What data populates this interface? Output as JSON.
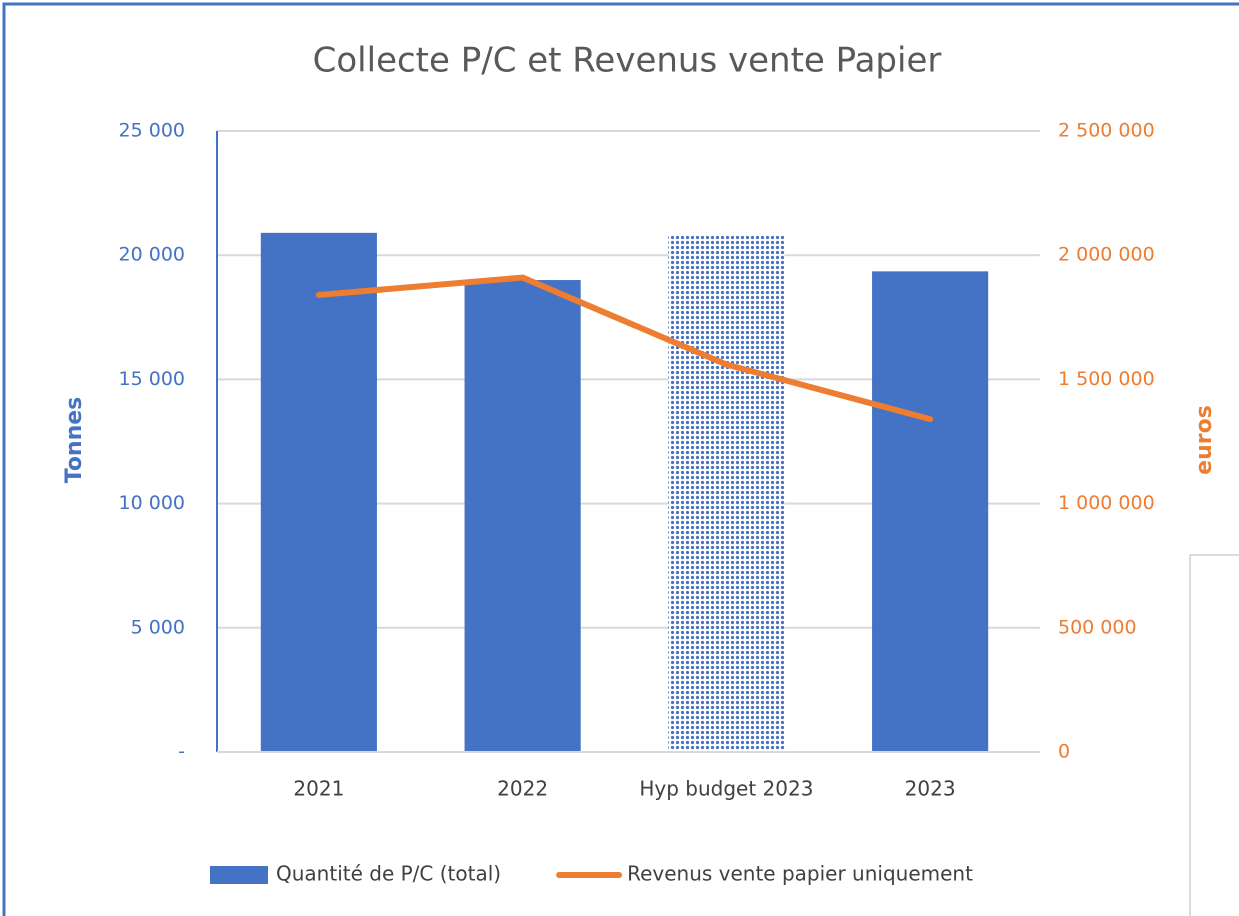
{
  "chart_data": {
    "type": "bar-line",
    "title": "Collecte P/C et Revenus vente Papier",
    "y_label": "Tonnes",
    "y2_label": "euros",
    "categories": [
      "2021",
      "2022",
      "Hyp budget 2023",
      "2023"
    ],
    "series": [
      {
        "name": "Quantité de P/C (total)",
        "type": "bar",
        "color": "#4472c4",
        "values": [
          20900,
          19000,
          20800,
          19350
        ],
        "patterned": [
          false,
          false,
          true,
          false
        ]
      },
      {
        "name": "Revenus vente papier uniquement",
        "type": "line",
        "axis": "y2",
        "color": "#ed7d31",
        "values": [
          1840000,
          1910000,
          1560000,
          1340000
        ]
      }
    ],
    "ylim": [
      0,
      25000
    ],
    "yticks": [
      {
        "value": 0,
        "label": "-"
      },
      {
        "value": 5000,
        "label": "5 000"
      },
      {
        "value": 10000,
        "label": "10 000"
      },
      {
        "value": 15000,
        "label": "15 000"
      },
      {
        "value": 20000,
        "label": "20 000"
      },
      {
        "value": 25000,
        "label": "25 000"
      }
    ],
    "y2lim": [
      0,
      2500000
    ],
    "y2ticks": [
      0,
      {
        "value": 500000,
        "label": "500 000"
      },
      {
        "value": 1000000,
        "label": "1 000 000"
      },
      {
        "value": 1500000,
        "label": "1 500 000"
      },
      {
        "value": 2000000,
        "label": "2 000 000"
      },
      {
        "value": 2500000,
        "label": "2 500 000"
      }
    ],
    "grid": true,
    "legend": "bottom"
  }
}
